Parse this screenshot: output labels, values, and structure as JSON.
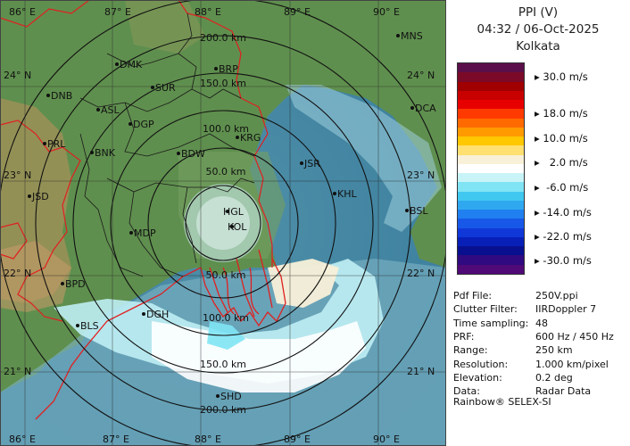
{
  "header": {
    "product": "PPI (V)",
    "datetime": "04:32 / 06-Oct-2025",
    "station": "Kolkata"
  },
  "legend": {
    "colors": [
      "#5b0f4a",
      "#7a0a28",
      "#a00000",
      "#c80000",
      "#e80000",
      "#ff3a00",
      "#ff6a00",
      "#ff9a00",
      "#ffc800",
      "#ffe070",
      "#f8f0d8",
      "#ffffff",
      "#c8f4f8",
      "#80e4f4",
      "#40c8f0",
      "#30a8f0",
      "#2080f0",
      "#1858e8",
      "#1038d8",
      "#0820b8",
      "#081090",
      "#300a80",
      "#500a78"
    ],
    "labels": [
      {
        "text": "30.0 m/s"
      },
      {
        "text": "18.0 m/s"
      },
      {
        "text": "10.0 m/s"
      },
      {
        "text": "  2.0 m/s"
      },
      {
        "text": " -6.0 m/s"
      },
      {
        "text": "-14.0 m/s"
      },
      {
        "text": "-22.0 m/s"
      },
      {
        "text": "-30.0 m/s"
      }
    ]
  },
  "info": [
    {
      "key": "Pdf File:",
      "value": "250V.ppi"
    },
    {
      "key": "Clutter Filter:",
      "value": "IIRDoppler 7"
    },
    {
      "key": "Time sampling:",
      "value": "48"
    },
    {
      "key": "PRF:",
      "value": "600 Hz / 450 Hz"
    },
    {
      "key": "Range:",
      "value": "250 km"
    },
    {
      "key": "Resolution:",
      "value": "1.000 km/pixel"
    },
    {
      "key": "Elevation:",
      "value": "0.2 deg"
    },
    {
      "key": "Data:",
      "value": "Radar Data"
    }
  ],
  "footer": "Rainbow® SELEX-SI",
  "map": {
    "lon_labels": [
      "86° E",
      "87° E",
      "88° E",
      "89° E",
      "90° E"
    ],
    "lat_labels": [
      "24° N",
      "23° N",
      "22° N",
      "21° N"
    ],
    "range_labels": [
      "50.0 km",
      "100.0 km",
      "150.0 km",
      "200.0 km",
      "50.0 km",
      "100.0 km",
      "150.0 km",
      "200.0 km"
    ],
    "places": [
      {
        "name": "MNS"
      },
      {
        "name": "DMK"
      },
      {
        "name": "BRP"
      },
      {
        "name": "DNB"
      },
      {
        "name": "SUR"
      },
      {
        "name": "DCA"
      },
      {
        "name": "ASL"
      },
      {
        "name": "DGP"
      },
      {
        "name": "KRG"
      },
      {
        "name": "PRL"
      },
      {
        "name": "BNK"
      },
      {
        "name": "BDW"
      },
      {
        "name": "JSR"
      },
      {
        "name": "KHL"
      },
      {
        "name": "JSD"
      },
      {
        "name": "BSL"
      },
      {
        "name": "HGL"
      },
      {
        "name": "KOL"
      },
      {
        "name": "MDP"
      },
      {
        "name": "BPD"
      },
      {
        "name": "DGH"
      },
      {
        "name": "BLS"
      },
      {
        "name": "SHD"
      }
    ]
  }
}
